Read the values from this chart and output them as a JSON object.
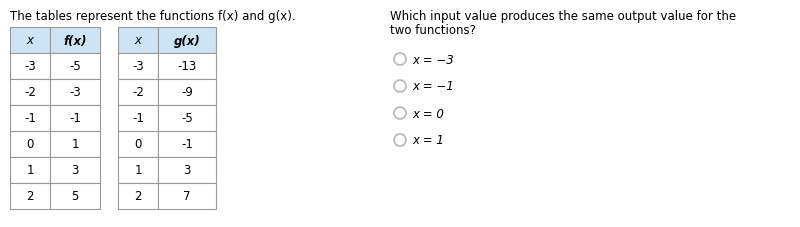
{
  "intro_text": "The tables represent the functions f(x) and g(x).",
  "question_line1": "Which input value produces the same output value for the",
  "question_line2": "two functions?",
  "f_headers": [
    "x",
    "f(x)"
  ],
  "f_rows": [
    [
      "-3",
      "-5"
    ],
    [
      "-2",
      "-3"
    ],
    [
      "-1",
      "-1"
    ],
    [
      "0",
      "1"
    ],
    [
      "1",
      "3"
    ],
    [
      "2",
      "5"
    ]
  ],
  "g_headers": [
    "x",
    "g(x)"
  ],
  "g_rows": [
    [
      "-3",
      "-13"
    ],
    [
      "-2",
      "-9"
    ],
    [
      "-1",
      "-5"
    ],
    [
      "0",
      "-1"
    ],
    [
      "1",
      "3"
    ],
    [
      "2",
      "7"
    ]
  ],
  "choices": [
    "x = −3",
    "x = −1",
    "x = 0",
    "x = 1"
  ],
  "header_bg": "#cce4f6",
  "cell_bg": "#ffffff",
  "border_color": "#999999",
  "bg_color": "#ffffff",
  "text_color": "#000000",
  "radio_color": "#bbbbbb",
  "font_size": 8.5,
  "header_font_size": 8.5
}
